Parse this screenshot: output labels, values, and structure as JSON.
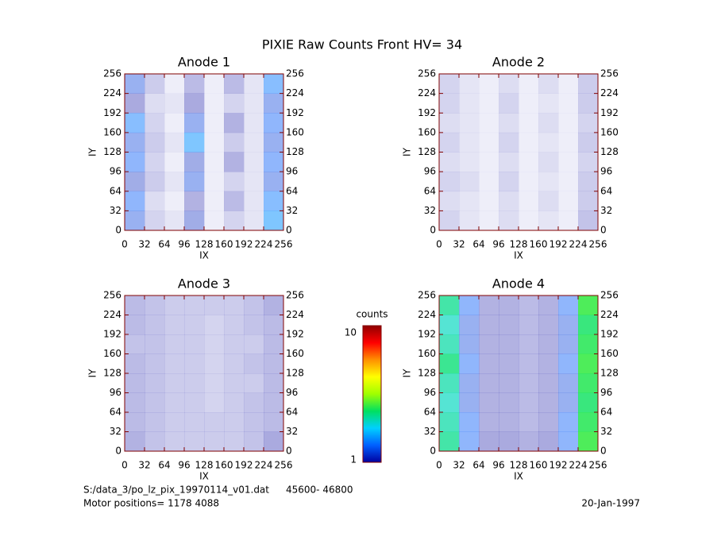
{
  "title": "PIXIE Raw Counts Front HV= 34",
  "chart_data": [
    {
      "type": "heatmap",
      "title": "Anode 1",
      "xlabel": "IX",
      "ylabel": "IY",
      "xlim": [
        0,
        256
      ],
      "ylim": [
        0,
        256
      ],
      "xticks": [
        0,
        32,
        64,
        96,
        128,
        160,
        192,
        224,
        256
      ],
      "yticks": [
        0,
        32,
        64,
        96,
        128,
        160,
        192,
        224,
        256
      ],
      "values": [
        [
          1.2,
          0.6,
          0.2,
          0.8,
          0.2,
          0.8,
          0.3,
          1.4
        ],
        [
          1.0,
          0.4,
          0.3,
          1.0,
          0.2,
          0.5,
          0.3,
          1.2
        ],
        [
          1.4,
          0.5,
          0.2,
          1.2,
          0.2,
          0.9,
          0.3,
          1.3
        ],
        [
          1.2,
          0.6,
          0.3,
          1.5,
          0.2,
          0.6,
          0.3,
          1.2
        ],
        [
          1.3,
          0.5,
          0.2,
          1.1,
          0.2,
          0.9,
          0.3,
          1.3
        ],
        [
          1.1,
          0.6,
          0.3,
          1.2,
          0.2,
          0.5,
          0.3,
          1.2
        ],
        [
          1.3,
          0.4,
          0.2,
          0.9,
          0.2,
          0.8,
          0.3,
          1.4
        ],
        [
          1.2,
          0.5,
          0.3,
          1.1,
          0.2,
          0.5,
          0.3,
          1.5
        ]
      ]
    },
    {
      "type": "heatmap",
      "title": "Anode 2",
      "xlabel": "IX",
      "ylabel": "IY",
      "xlim": [
        0,
        256
      ],
      "ylim": [
        0,
        256
      ],
      "xticks": [
        0,
        32,
        64,
        96,
        128,
        160,
        192,
        224,
        256
      ],
      "yticks": [
        0,
        32,
        64,
        96,
        128,
        160,
        192,
        224,
        256
      ],
      "values": [
        [
          0.5,
          0.3,
          0.2,
          0.4,
          0.2,
          0.4,
          0.2,
          0.6
        ],
        [
          0.5,
          0.3,
          0.2,
          0.5,
          0.2,
          0.3,
          0.2,
          0.6
        ],
        [
          0.4,
          0.3,
          0.2,
          0.4,
          0.2,
          0.4,
          0.2,
          0.5
        ],
        [
          0.5,
          0.3,
          0.2,
          0.5,
          0.2,
          0.3,
          0.2,
          0.6
        ],
        [
          0.4,
          0.3,
          0.2,
          0.4,
          0.2,
          0.4,
          0.2,
          0.5
        ],
        [
          0.5,
          0.4,
          0.2,
          0.5,
          0.2,
          0.3,
          0.2,
          0.6
        ],
        [
          0.4,
          0.3,
          0.2,
          0.4,
          0.2,
          0.4,
          0.2,
          0.6
        ],
        [
          0.5,
          0.3,
          0.2,
          0.4,
          0.2,
          0.3,
          0.2,
          0.7
        ]
      ]
    },
    {
      "type": "heatmap",
      "title": "Anode 3",
      "xlabel": "IX",
      "ylabel": "IY",
      "xlim": [
        0,
        256
      ],
      "ylim": [
        0,
        256
      ],
      "xticks": [
        0,
        32,
        64,
        96,
        128,
        160,
        192,
        224,
        256
      ],
      "yticks": [
        0,
        32,
        64,
        96,
        128,
        160,
        192,
        224,
        256
      ],
      "values": [
        [
          0.8,
          0.7,
          0.6,
          0.6,
          0.6,
          0.6,
          0.7,
          0.9
        ],
        [
          0.8,
          0.7,
          0.6,
          0.6,
          0.5,
          0.6,
          0.7,
          0.8
        ],
        [
          0.7,
          0.7,
          0.6,
          0.6,
          0.5,
          0.6,
          0.6,
          0.8
        ],
        [
          0.8,
          0.7,
          0.6,
          0.6,
          0.5,
          0.6,
          0.7,
          0.8
        ],
        [
          0.8,
          0.7,
          0.6,
          0.6,
          0.5,
          0.6,
          0.6,
          0.8
        ],
        [
          0.8,
          0.7,
          0.6,
          0.6,
          0.5,
          0.6,
          0.7,
          0.8
        ],
        [
          0.8,
          0.7,
          0.6,
          0.6,
          0.6,
          0.6,
          0.7,
          0.8
        ],
        [
          0.9,
          0.7,
          0.6,
          0.6,
          0.6,
          0.6,
          0.7,
          1.0
        ]
      ]
    },
    {
      "type": "heatmap",
      "title": "Anode 4",
      "xlabel": "IX",
      "ylabel": "IY",
      "xlim": [
        0,
        256
      ],
      "ylim": [
        0,
        256
      ],
      "xticks": [
        0,
        32,
        64,
        96,
        128,
        160,
        192,
        224,
        256
      ],
      "yticks": [
        0,
        32,
        64,
        96,
        128,
        160,
        192,
        224,
        256
      ],
      "values": [
        [
          2.2,
          1.3,
          0.9,
          0.9,
          0.8,
          0.9,
          1.3,
          2.6
        ],
        [
          2.0,
          1.2,
          0.9,
          0.9,
          0.8,
          0.9,
          1.2,
          2.4
        ],
        [
          2.1,
          1.2,
          0.9,
          0.9,
          0.8,
          0.9,
          1.2,
          2.5
        ],
        [
          2.3,
          1.3,
          0.9,
          0.9,
          0.8,
          0.9,
          1.3,
          2.6
        ],
        [
          2.1,
          1.2,
          0.9,
          0.9,
          0.8,
          0.9,
          1.2,
          2.5
        ],
        [
          2.0,
          1.2,
          0.9,
          0.9,
          0.8,
          0.9,
          1.2,
          2.4
        ],
        [
          2.1,
          1.3,
          0.9,
          0.9,
          0.8,
          0.9,
          1.3,
          2.5
        ],
        [
          2.2,
          1.3,
          1.0,
          1.0,
          0.9,
          1.0,
          1.3,
          2.6
        ]
      ]
    }
  ],
  "colorbar": {
    "label": "counts",
    "lim": [
      1,
      10
    ],
    "ticks": [
      1,
      10
    ],
    "log": true,
    "colors": [
      "#0000a0",
      "#0060ff",
      "#00d0ff",
      "#00e060",
      "#a0ff00",
      "#ffff00",
      "#ff9000",
      "#ff0000",
      "#900000"
    ]
  },
  "footer": {
    "file": "S:/data_3/po_lz_pix_19970114_v01.dat",
    "range": "45600- 46800",
    "motor": "Motor positions= 1178 4088",
    "date": "20-Jan-1997"
  }
}
